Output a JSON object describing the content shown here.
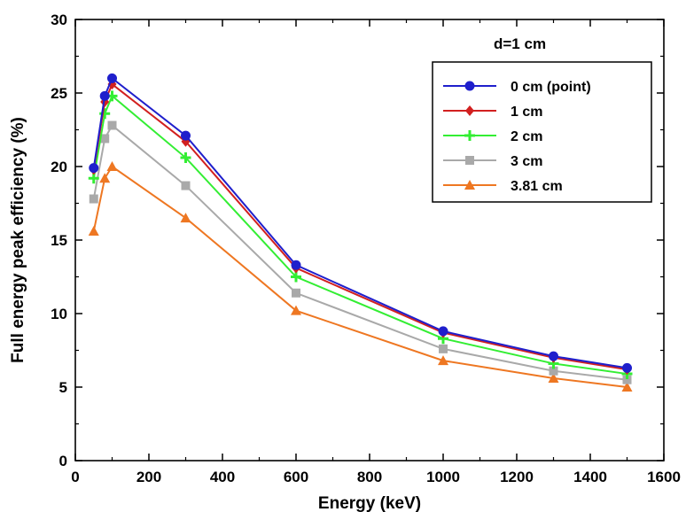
{
  "chart_data": {
    "type": "line",
    "title": "",
    "annotation": "d=1 cm",
    "xlabel": "Energy (keV)",
    "ylabel": "Full energy peak efficiency (%)",
    "xlim": [
      0,
      1600
    ],
    "ylim": [
      0,
      30
    ],
    "xticks": [
      0,
      200,
      400,
      600,
      800,
      1000,
      1200,
      1400,
      1600
    ],
    "yticks": [
      0,
      5,
      10,
      15,
      20,
      25,
      30
    ],
    "grid": false,
    "legend_position": "top-right",
    "x": [
      50,
      80,
      100,
      300,
      600,
      1000,
      1300,
      1500
    ],
    "series": [
      {
        "name": "0 cm (point)",
        "color": "#1f1fcc",
        "marker": "circle",
        "values": [
          19.9,
          24.8,
          26.0,
          22.1,
          13.3,
          8.8,
          7.1,
          6.3
        ]
      },
      {
        "name": "1 cm",
        "color": "#d22020",
        "marker": "diamond",
        "values": [
          19.8,
          24.4,
          25.6,
          21.7,
          13.1,
          8.7,
          7.0,
          6.2
        ]
      },
      {
        "name": "2 cm",
        "color": "#33ee33",
        "marker": "cross",
        "values": [
          19.2,
          23.6,
          24.8,
          20.6,
          12.5,
          8.3,
          6.6,
          5.9
        ]
      },
      {
        "name": "3 cm",
        "color": "#a9a9a9",
        "marker": "square",
        "values": [
          17.8,
          21.9,
          22.8,
          18.7,
          11.4,
          7.6,
          6.1,
          5.5
        ]
      },
      {
        "name": "3.81 cm",
        "color": "#ee7722",
        "marker": "triangle",
        "values": [
          15.6,
          19.2,
          20.0,
          16.5,
          10.2,
          6.8,
          5.6,
          5.0
        ]
      }
    ]
  }
}
